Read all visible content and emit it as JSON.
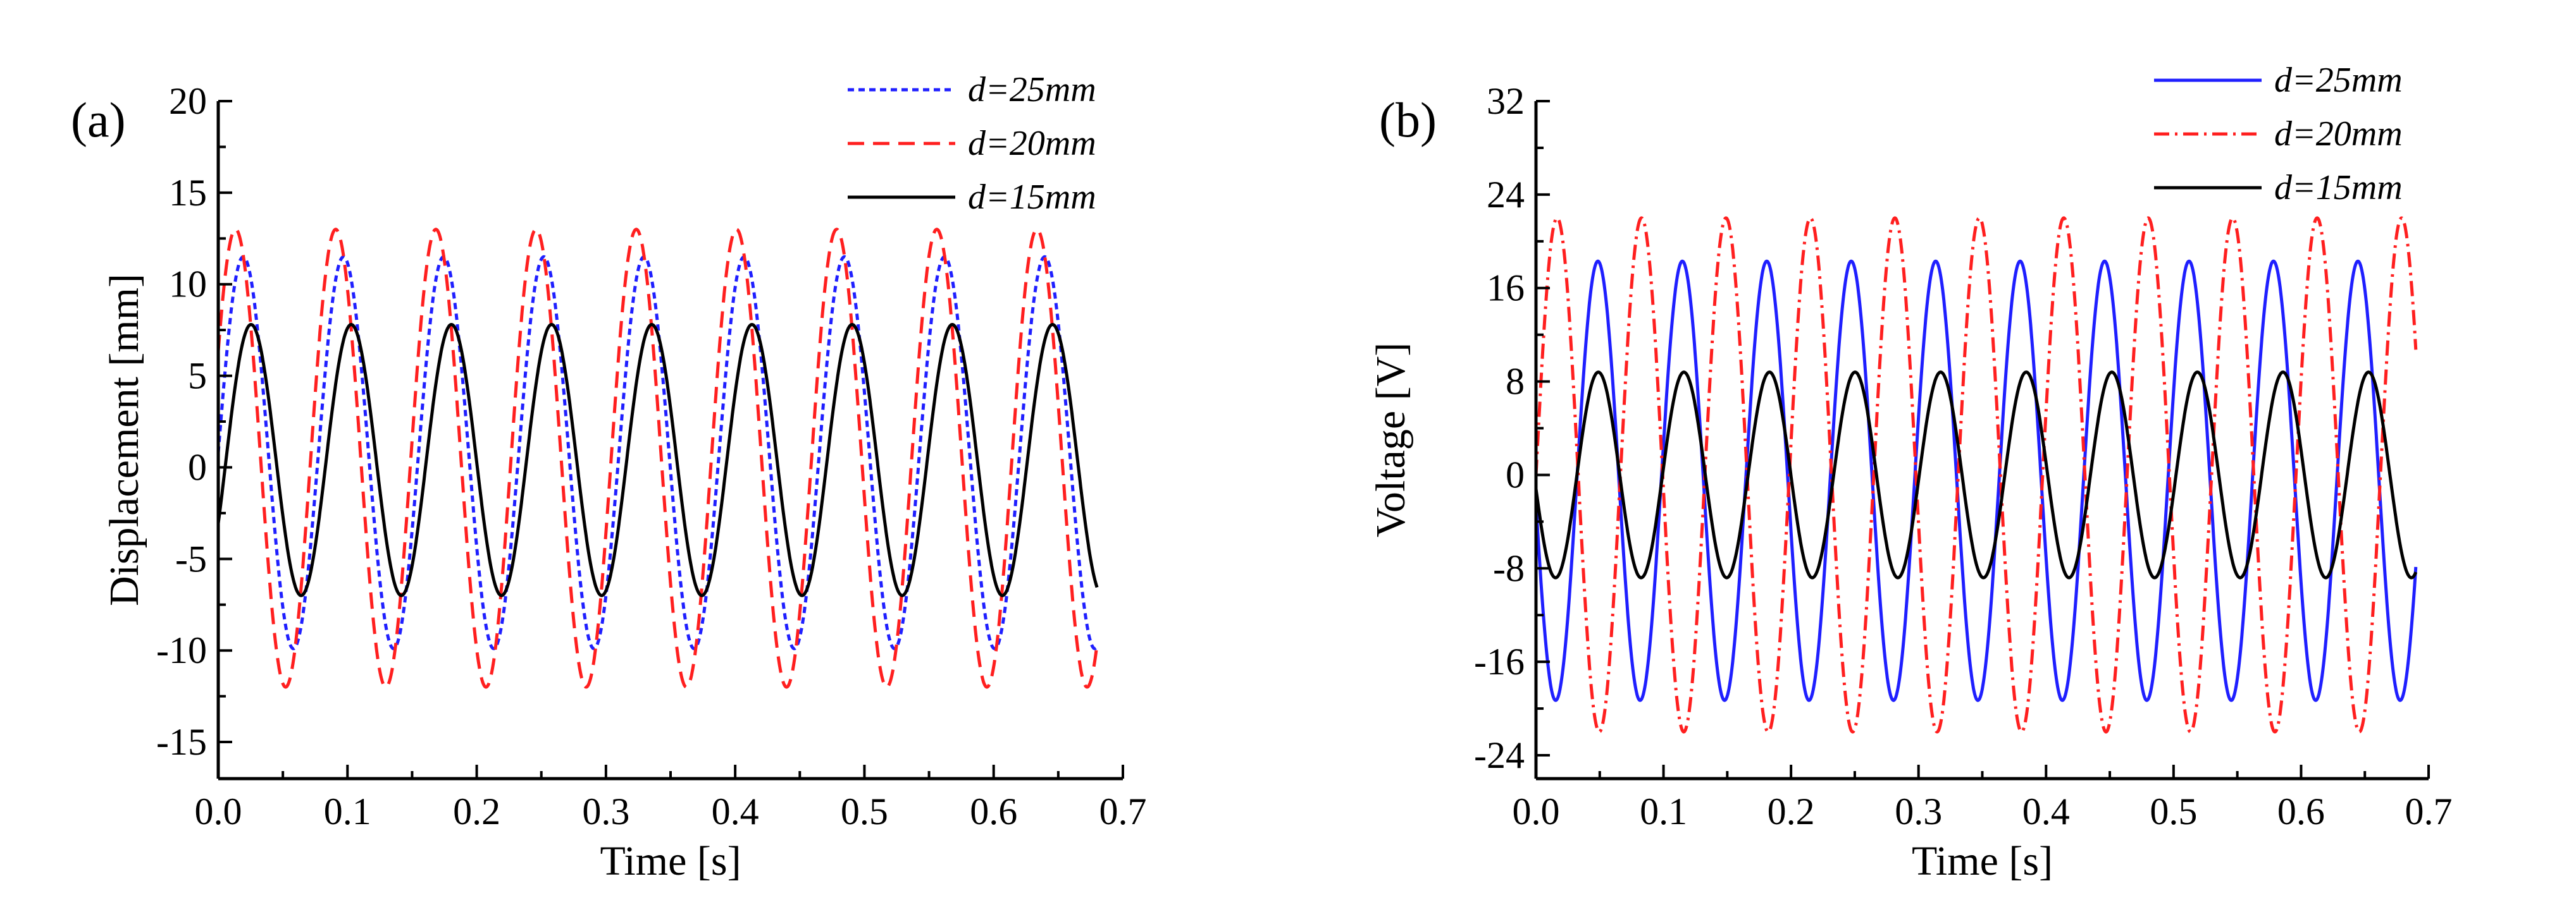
{
  "chart_data": [
    {
      "type": "line",
      "panel_label": "(a)",
      "xlabel": "Time [s]",
      "ylabel": "Displacement [mm]",
      "xlim": [
        0.0,
        0.7
      ],
      "ylim": [
        -17,
        20
      ],
      "xticks": [
        "0.0",
        "0.1",
        "0.2",
        "0.3",
        "0.4",
        "0.5",
        "0.6",
        "0.7"
      ],
      "yticks": [
        "-15",
        "-10",
        "-5",
        "0",
        "5",
        "10",
        "15",
        "20"
      ],
      "ytick_values": [
        -15,
        -10,
        -5,
        0,
        5,
        10,
        15,
        20
      ],
      "series": [
        {
          "name": "d=25mm",
          "color": "#1f1fff",
          "style": "dotted",
          "freq_hz": 12.9,
          "offset": 0.8,
          "amplitude": 10.7,
          "phase_s": 0.0,
          "t_end": 0.68
        },
        {
          "name": "d=20mm",
          "color": "#ff1f1f",
          "style": "dashed",
          "freq_hz": 12.9,
          "offset": 0.5,
          "amplitude": 12.5,
          "phase_s": -0.006,
          "t_end": 0.68
        },
        {
          "name": "d=15mm",
          "color": "#000000",
          "style": "solid",
          "freq_hz": 12.9,
          "offset": 0.4,
          "amplitude": 7.4,
          "phase_s": 0.006,
          "t_end": 0.68
        }
      ]
    },
    {
      "type": "line",
      "panel_label": "(b)",
      "xlabel": "Time [s]",
      "ylabel": "Voltage [V]",
      "xlim": [
        0.0,
        0.7
      ],
      "ylim": [
        -26,
        32
      ],
      "xticks": [
        "0.0",
        "0.1",
        "0.2",
        "0.3",
        "0.4",
        "0.5",
        "0.6",
        "0.7"
      ],
      "yticks": [
        "-24",
        "-16",
        "-8",
        "0",
        "8",
        "16",
        "24",
        "32"
      ],
      "ytick_values": [
        -24,
        -16,
        -8,
        0,
        8,
        16,
        24,
        32
      ],
      "series": [
        {
          "name": "d=25mm",
          "color": "#1f1fff",
          "style": "solid",
          "freq_hz": 15.1,
          "offset": -0.5,
          "amplitude": 18.8,
          "phase_s": 0.032,
          "t_end": 0.69
        },
        {
          "name": "d=20mm",
          "color": "#ff1f1f",
          "style": "dashdot",
          "freq_hz": 15.1,
          "offset": 0.0,
          "amplitude": 22.0,
          "phase_s": 0.0,
          "t_end": 0.69
        },
        {
          "name": "d=15mm",
          "color": "#000000",
          "style": "solid",
          "freq_hz": 14.9,
          "offset": 0.0,
          "amplitude": 8.8,
          "phase_s": -0.035,
          "t_end": 0.69
        }
      ]
    }
  ]
}
